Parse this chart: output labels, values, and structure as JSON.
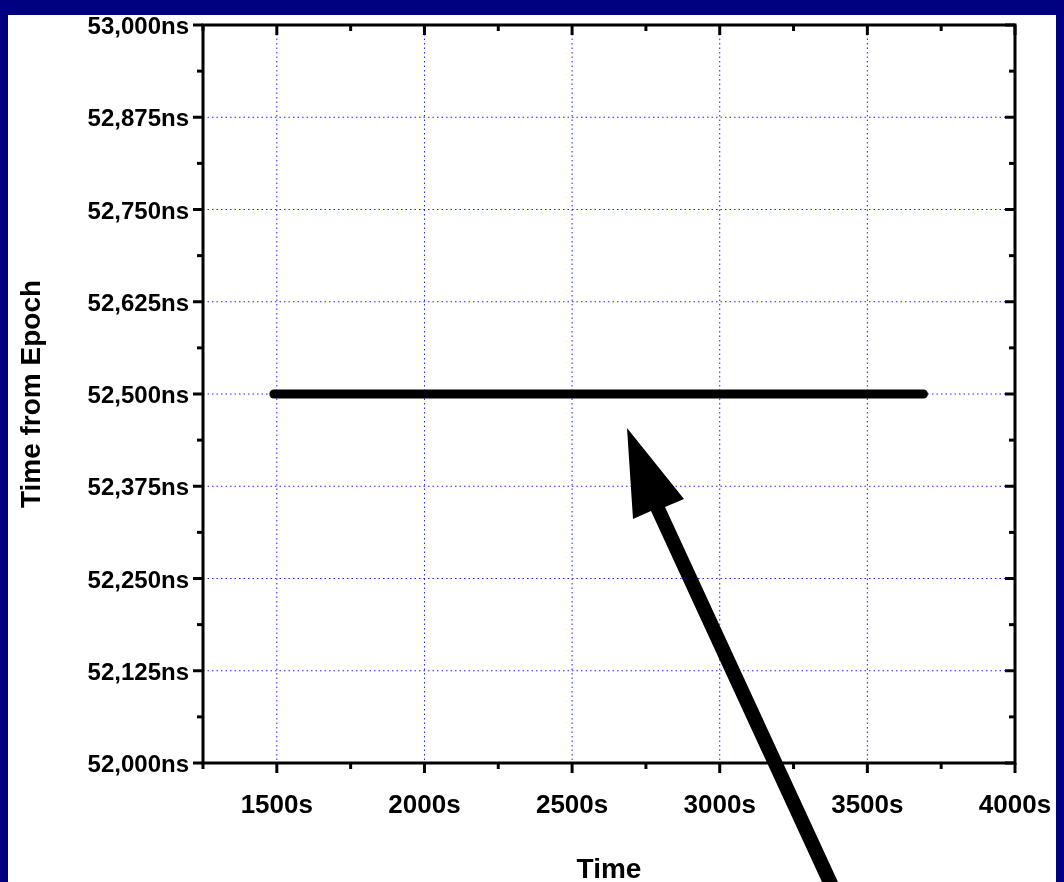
{
  "chart_data": {
    "type": "line",
    "xlabel": "Time",
    "ylabel": "Time from Epoch",
    "x": [
      1490,
      3690
    ],
    "series": [
      {
        "color": "#000000",
        "values": [
          52500,
          52500
        ]
      }
    ],
    "xlim": [
      1250,
      4000
    ],
    "xticks": [
      {
        "value": 1500,
        "label": "1500s"
      },
      {
        "value": 2000,
        "label": "2000s"
      },
      {
        "value": 2500,
        "label": "2500s"
      },
      {
        "value": 3000,
        "label": "3000s"
      },
      {
        "value": 3500,
        "label": "3500s"
      },
      {
        "value": 4000,
        "label": "4000s"
      }
    ],
    "ylim": [
      52000,
      53000
    ],
    "yticks": [
      {
        "value": 52000,
        "label": "52,000ns"
      },
      {
        "value": 52125,
        "label": "52,125ns"
      },
      {
        "value": 52250,
        "label": "52,250ns"
      },
      {
        "value": 52375,
        "label": "52,375ns"
      },
      {
        "value": 52500,
        "label": "52,500ns"
      },
      {
        "value": 52625,
        "label": "52,625ns"
      },
      {
        "value": 52750,
        "label": "52,750ns"
      },
      {
        "value": 52875,
        "label": "52,875ns"
      },
      {
        "value": 53000,
        "label": "53,000ns"
      }
    ],
    "grid": true,
    "marker": "none",
    "line_style": "solid"
  }
}
